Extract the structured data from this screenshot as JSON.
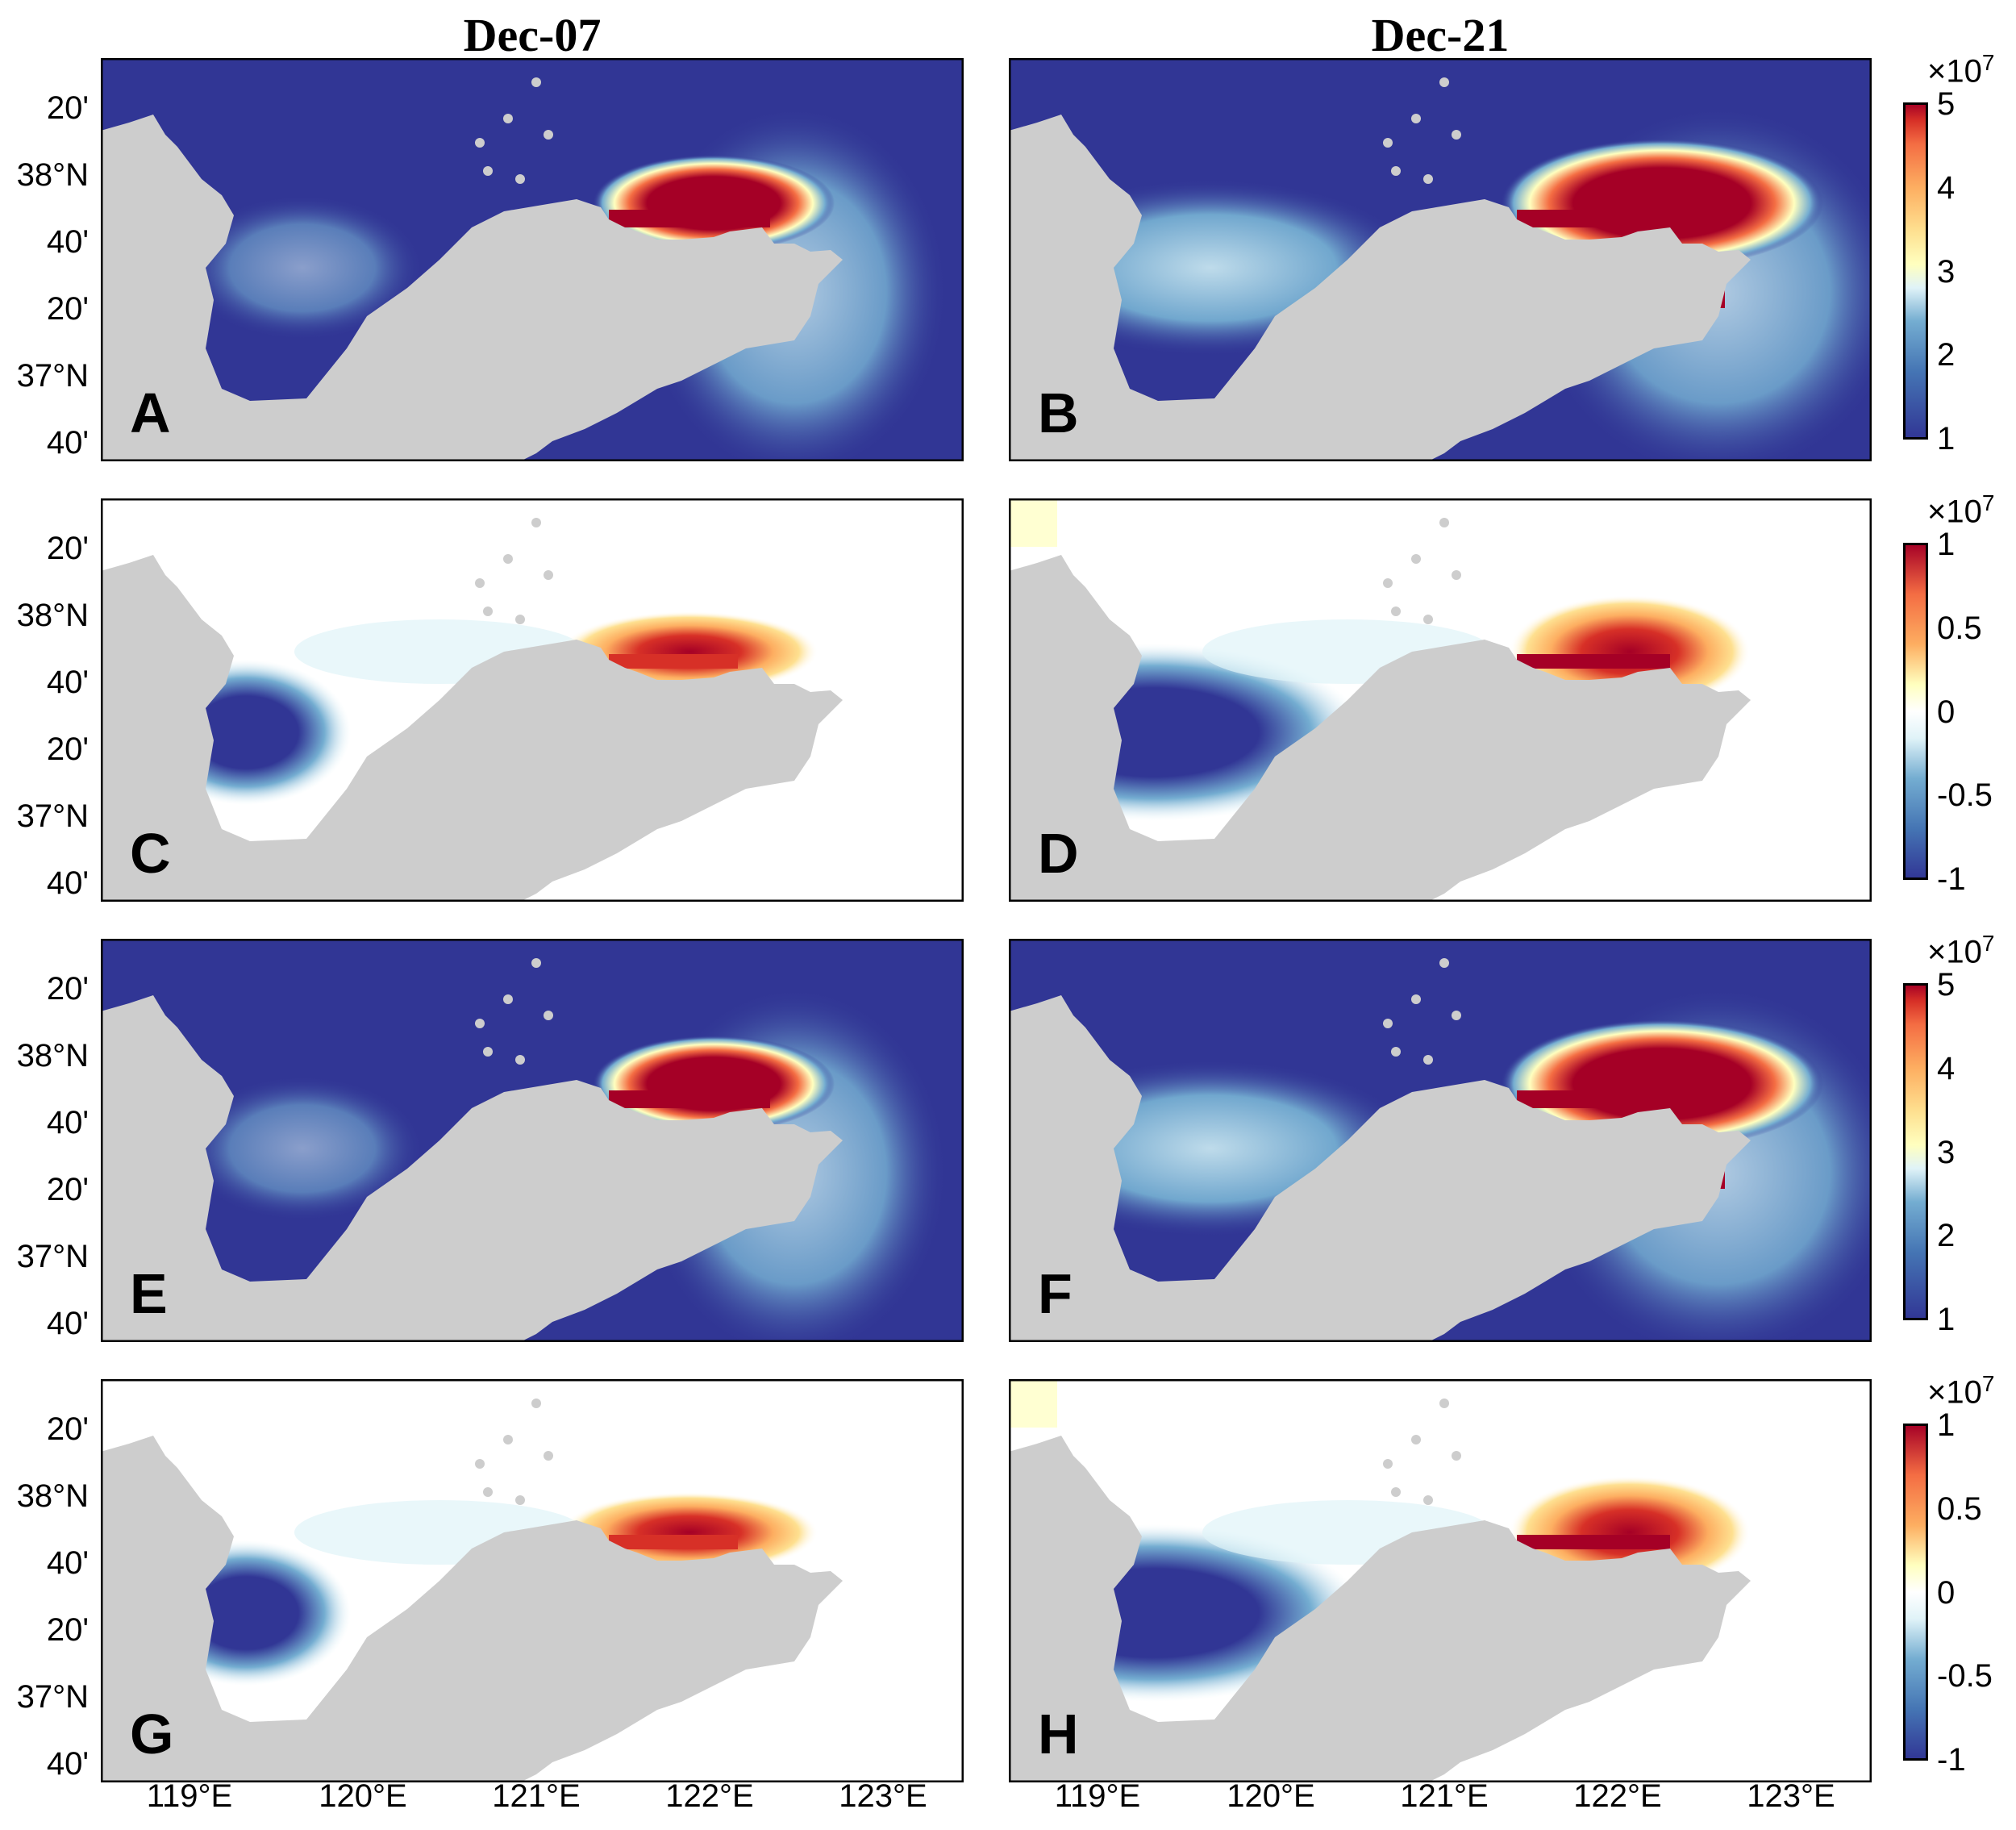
{
  "columns": [
    "Dec-07",
    "Dec-21"
  ],
  "panel_labels": [
    "A",
    "B",
    "C",
    "D",
    "E",
    "F",
    "G",
    "H"
  ],
  "lat_tick_labels": [
    "20'",
    "38°N",
    "40'",
    "20'",
    "37°N",
    "40'"
  ],
  "lon_tick_labels": [
    "119°E",
    "120°E",
    "121°E",
    "122°E",
    "123°E"
  ],
  "colorbars": [
    {
      "row": 1,
      "exponent_base": "×10",
      "exponent": "7",
      "ticks": [
        "5",
        "4",
        "3",
        "2",
        "1"
      ],
      "range": [
        0,
        5
      ]
    },
    {
      "row": 2,
      "exponent_base": "×10",
      "exponent": "7",
      "ticks": [
        "1",
        "0.5",
        "0",
        "-0.5",
        "-1"
      ],
      "range": [
        -1,
        1
      ]
    },
    {
      "row": 3,
      "exponent_base": "×10",
      "exponent": "7",
      "ticks": [
        "5",
        "4",
        "3",
        "2",
        "1"
      ],
      "range": [
        0,
        5
      ]
    },
    {
      "row": 4,
      "exponent_base": "×10",
      "exponent": "7",
      "ticks": [
        "1",
        "0.5",
        "0",
        "-0.5",
        "-1"
      ],
      "range": [
        -1,
        1
      ]
    }
  ],
  "colors": {
    "land": "#cdcdcd",
    "sea_low": "#313695",
    "sea_high": "#a50026",
    "neutral": "#ffffff"
  }
}
